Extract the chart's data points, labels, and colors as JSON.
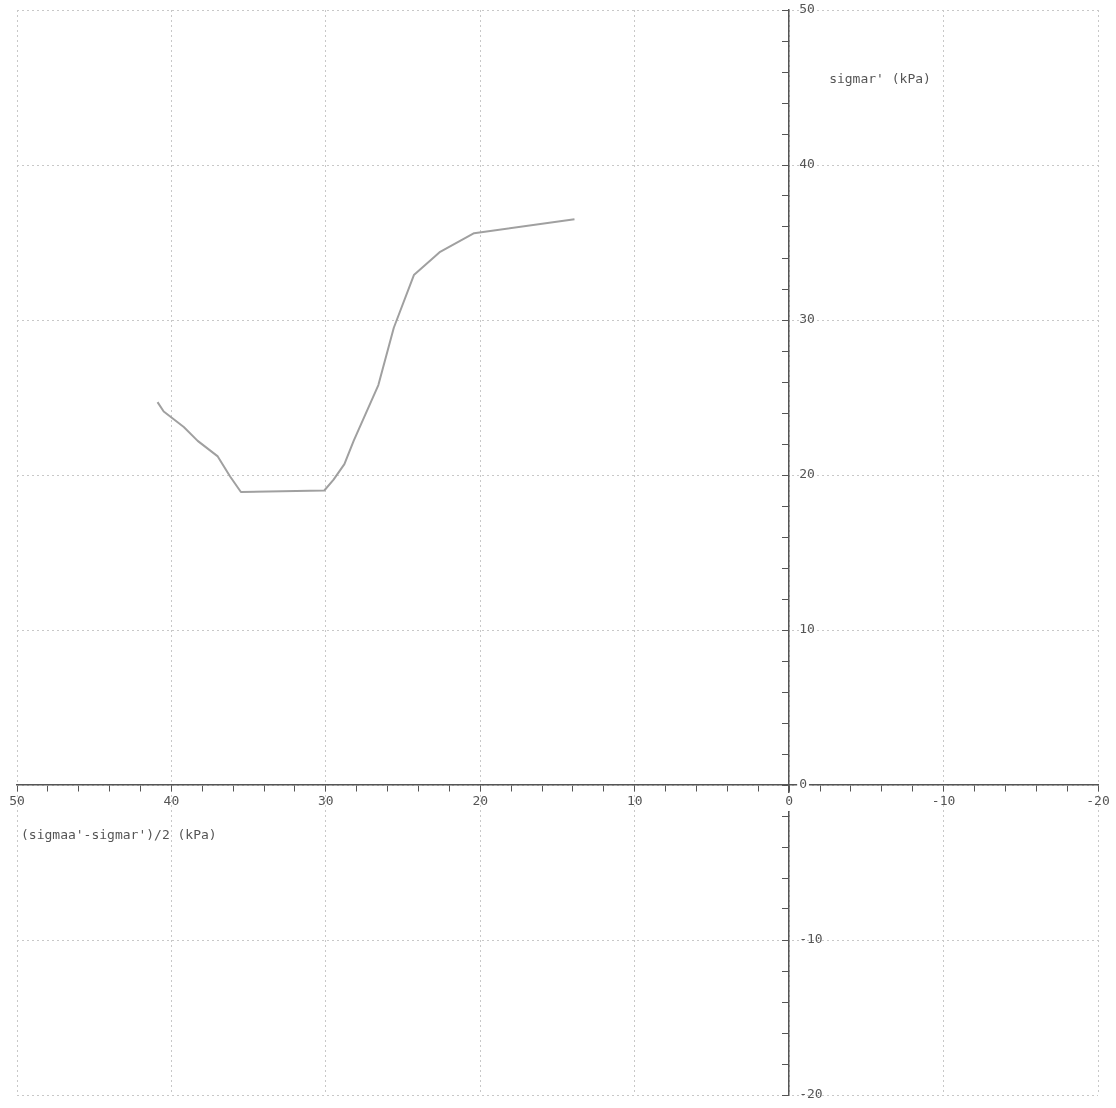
{
  "chart_data": {
    "type": "line",
    "xlabel": "(sigmaa'-sigmar')/2 (kPa)",
    "ylabel": "sigmar' (kPa)",
    "x": [
      13.9,
      20.4,
      22.6,
      24.3,
      25.6,
      26.6,
      28.2,
      28.8,
      29.5,
      30.1,
      35.5,
      36.2,
      37.0,
      38.3,
      39.2,
      40.5,
      40.9
    ],
    "series": [
      {
        "color": "#a0a0a0",
        "values": [
          36.5,
          35.6,
          34.4,
          32.9,
          29.5,
          25.8,
          22.2,
          20.7,
          19.7,
          19.0,
          18.9,
          19.9,
          21.2,
          22.2,
          23.1,
          24.1,
          24.7
        ]
      }
    ],
    "xlim": [
      50,
      -20
    ],
    "xticks": [
      50,
      {
        "value": 48,
        "label": null
      },
      {
        "value": 46,
        "label": null
      },
      {
        "value": 44,
        "label": null
      },
      {
        "value": 42,
        "label": null
      },
      40,
      {
        "value": 38,
        "label": null
      },
      {
        "value": 36,
        "label": null
      },
      {
        "value": 34,
        "label": null
      },
      {
        "value": 32,
        "label": null
      },
      30,
      {
        "value": 28,
        "label": null
      },
      {
        "value": 26,
        "label": null
      },
      {
        "value": 24,
        "label": null
      },
      {
        "value": 22,
        "label": null
      },
      20,
      {
        "value": 18,
        "label": null
      },
      {
        "value": 16,
        "label": null
      },
      {
        "value": 14,
        "label": null
      },
      {
        "value": 12,
        "label": null
      },
      10,
      {
        "value": 8,
        "label": null
      },
      {
        "value": 6,
        "label": null
      },
      {
        "value": 4,
        "label": null
      },
      {
        "value": 2,
        "label": null
      },
      0,
      {
        "value": -2,
        "label": null
      },
      {
        "value": -4,
        "label": null
      },
      {
        "value": -6,
        "label": null
      },
      {
        "value": -8,
        "label": null
      },
      -10,
      {
        "value": -12,
        "label": null
      },
      {
        "value": -14,
        "label": null
      },
      {
        "value": -16,
        "label": null
      },
      {
        "value": -18,
        "label": null
      },
      -20
    ],
    "ylim": [
      -20,
      50
    ],
    "yticks": [
      -20,
      {
        "value": -18,
        "label": null
      },
      {
        "value": -16,
        "label": null
      },
      {
        "value": -14,
        "label": null
      },
      {
        "value": -12,
        "label": null
      },
      -10,
      {
        "value": -8,
        "label": null
      },
      {
        "value": -6,
        "label": null
      },
      {
        "value": -4,
        "label": null
      },
      {
        "value": -2,
        "label": null
      },
      0,
      {
        "value": 2,
        "label": null
      },
      {
        "value": 4,
        "label": null
      },
      {
        "value": 6,
        "label": null
      },
      {
        "value": 8,
        "label": null
      },
      10,
      {
        "value": 12,
        "label": null
      },
      {
        "value": 14,
        "label": null
      },
      {
        "value": 16,
        "label": null
      },
      {
        "value": 18,
        "label": null
      },
      20,
      {
        "value": 22,
        "label": null
      },
      {
        "value": 24,
        "label": null
      },
      {
        "value": 26,
        "label": null
      },
      {
        "value": 28,
        "label": null
      },
      30,
      {
        "value": 32,
        "label": null
      },
      {
        "value": 34,
        "label": null
      },
      {
        "value": 36,
        "label": null
      },
      {
        "value": 38,
        "label": null
      },
      40,
      {
        "value": 42,
        "label": null
      },
      {
        "value": 44,
        "label": null
      },
      {
        "value": 46,
        "label": null
      },
      {
        "value": 48,
        "label": null
      },
      50
    ],
    "grid": true,
    "line_style": "solid",
    "marker": "none",
    "legend": false
  }
}
